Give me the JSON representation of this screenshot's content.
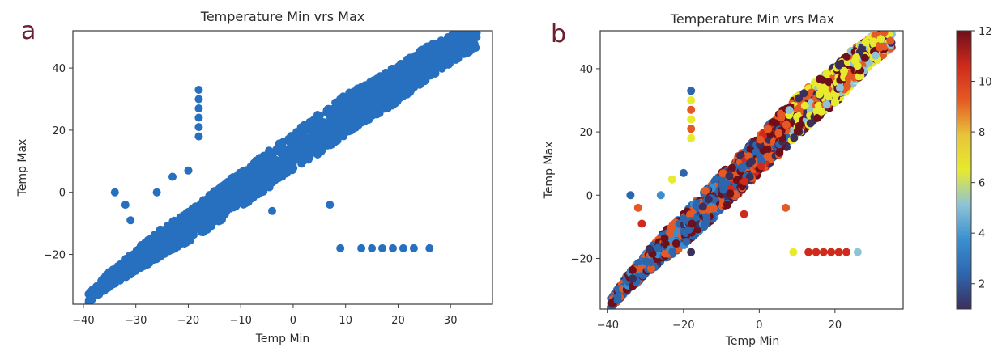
{
  "panels": [
    {
      "letter": "a"
    },
    {
      "letter": "b"
    }
  ],
  "colors": {
    "marker": "#2770bf",
    "axis": "#3a3a3a",
    "text": "#2b2b2b",
    "panel_letter": "#6b2030",
    "colormap": [
      "#3b2f5c",
      "#2e66ae",
      "#3a8fd0",
      "#8fc3d6",
      "#e7ea2e",
      "#e8c43a",
      "#e55a24",
      "#cf2a1c",
      "#6e0f1a"
    ]
  },
  "chart_data": [
    {
      "type": "scatter",
      "title": "Temperature Min vrs Max",
      "xlabel": "Temp Min",
      "ylabel": "Temp Max",
      "xlim": [
        -42,
        38
      ],
      "ylim": [
        -36,
        52
      ],
      "xticks": [
        -40,
        -30,
        -20,
        -10,
        0,
        10,
        20,
        30
      ],
      "yticks": [
        -20,
        0,
        20,
        40
      ],
      "grid": false,
      "series": [
        {
          "band": [
            [
              -39,
              -34
            ],
            [
              -35,
              -28
            ],
            [
              -30,
              -22
            ],
            [
              -25,
              -16
            ],
            [
              -20,
              -11
            ],
            [
              -15,
              -5
            ],
            [
              -10,
              1
            ],
            [
              -5,
              7
            ],
            [
              0,
              13
            ],
            [
              5,
              19
            ],
            [
              10,
              25
            ],
            [
              15,
              30
            ],
            [
              20,
              35
            ],
            [
              25,
              41
            ],
            [
              30,
              46
            ],
            [
              35,
              50
            ]
          ],
          "band_spread": [
            3,
            5,
            7,
            9,
            10,
            11,
            12,
            12,
            12,
            13,
            13,
            12,
            12,
            11,
            9,
            7
          ],
          "outliers": [
            [
              -18,
              33
            ],
            [
              -18,
              30
            ],
            [
              -18,
              27
            ],
            [
              -18,
              24
            ],
            [
              -18,
              21
            ],
            [
              -18,
              18
            ],
            [
              -34,
              0
            ],
            [
              -32,
              -4
            ],
            [
              -31,
              -9
            ],
            [
              -29,
              -17
            ],
            [
              -23,
              5
            ],
            [
              -26,
              0
            ],
            [
              -20,
              7
            ],
            [
              7,
              -4
            ],
            [
              -4,
              -6
            ],
            [
              9,
              -18
            ],
            [
              13,
              -18
            ],
            [
              15,
              -18
            ],
            [
              17,
              -18
            ],
            [
              19,
              -18
            ],
            [
              21,
              -18
            ],
            [
              23,
              -18
            ],
            [
              26,
              -18
            ]
          ]
        }
      ]
    },
    {
      "type": "scatter",
      "title": "Temperature Min vrs Max",
      "xlabel": "Temp Min",
      "ylabel": "Temp Max",
      "xlim": [
        -42,
        38
      ],
      "ylim": [
        -36,
        52
      ],
      "xticks": [
        -40,
        -20,
        0,
        20
      ],
      "yticks": [
        -20,
        0,
        20,
        40
      ],
      "grid": false,
      "colorbar": {
        "min": 1,
        "max": 12,
        "ticks": [
          2,
          4,
          6,
          8,
          10,
          12
        ]
      },
      "series": [
        {
          "band": [
            [
              -39,
              -34
            ],
            [
              -35,
              -28
            ],
            [
              -30,
              -22
            ],
            [
              -25,
              -16
            ],
            [
              -20,
              -11
            ],
            [
              -15,
              -5
            ],
            [
              -10,
              1
            ],
            [
              -5,
              7
            ],
            [
              0,
              13
            ],
            [
              5,
              19
            ],
            [
              10,
              25
            ],
            [
              15,
              30
            ],
            [
              20,
              35
            ],
            [
              25,
              41
            ],
            [
              30,
              46
            ],
            [
              35,
              50
            ]
          ],
          "band_spread": [
            3,
            5,
            7,
            9,
            10,
            11,
            12,
            12,
            12,
            13,
            13,
            12,
            12,
            11,
            9,
            7
          ],
          "outliers": [
            [
              -18,
              33
            ],
            [
              -18,
              30
            ],
            [
              -18,
              27
            ],
            [
              -18,
              24
            ],
            [
              -18,
              21
            ],
            [
              -18,
              18
            ],
            [
              -34,
              0
            ],
            [
              -32,
              -4
            ],
            [
              -31,
              -9
            ],
            [
              -29,
              -17
            ],
            [
              -23,
              5
            ],
            [
              -26,
              0
            ],
            [
              -20,
              7
            ],
            [
              7,
              -4
            ],
            [
              -4,
              -6
            ],
            [
              -18,
              -18
            ],
            [
              9,
              -18
            ],
            [
              13,
              -18
            ],
            [
              15,
              -18
            ],
            [
              17,
              -18
            ],
            [
              19,
              -18
            ],
            [
              21,
              -18
            ],
            [
              23,
              -18
            ],
            [
              26,
              -18
            ]
          ]
        }
      ]
    }
  ]
}
